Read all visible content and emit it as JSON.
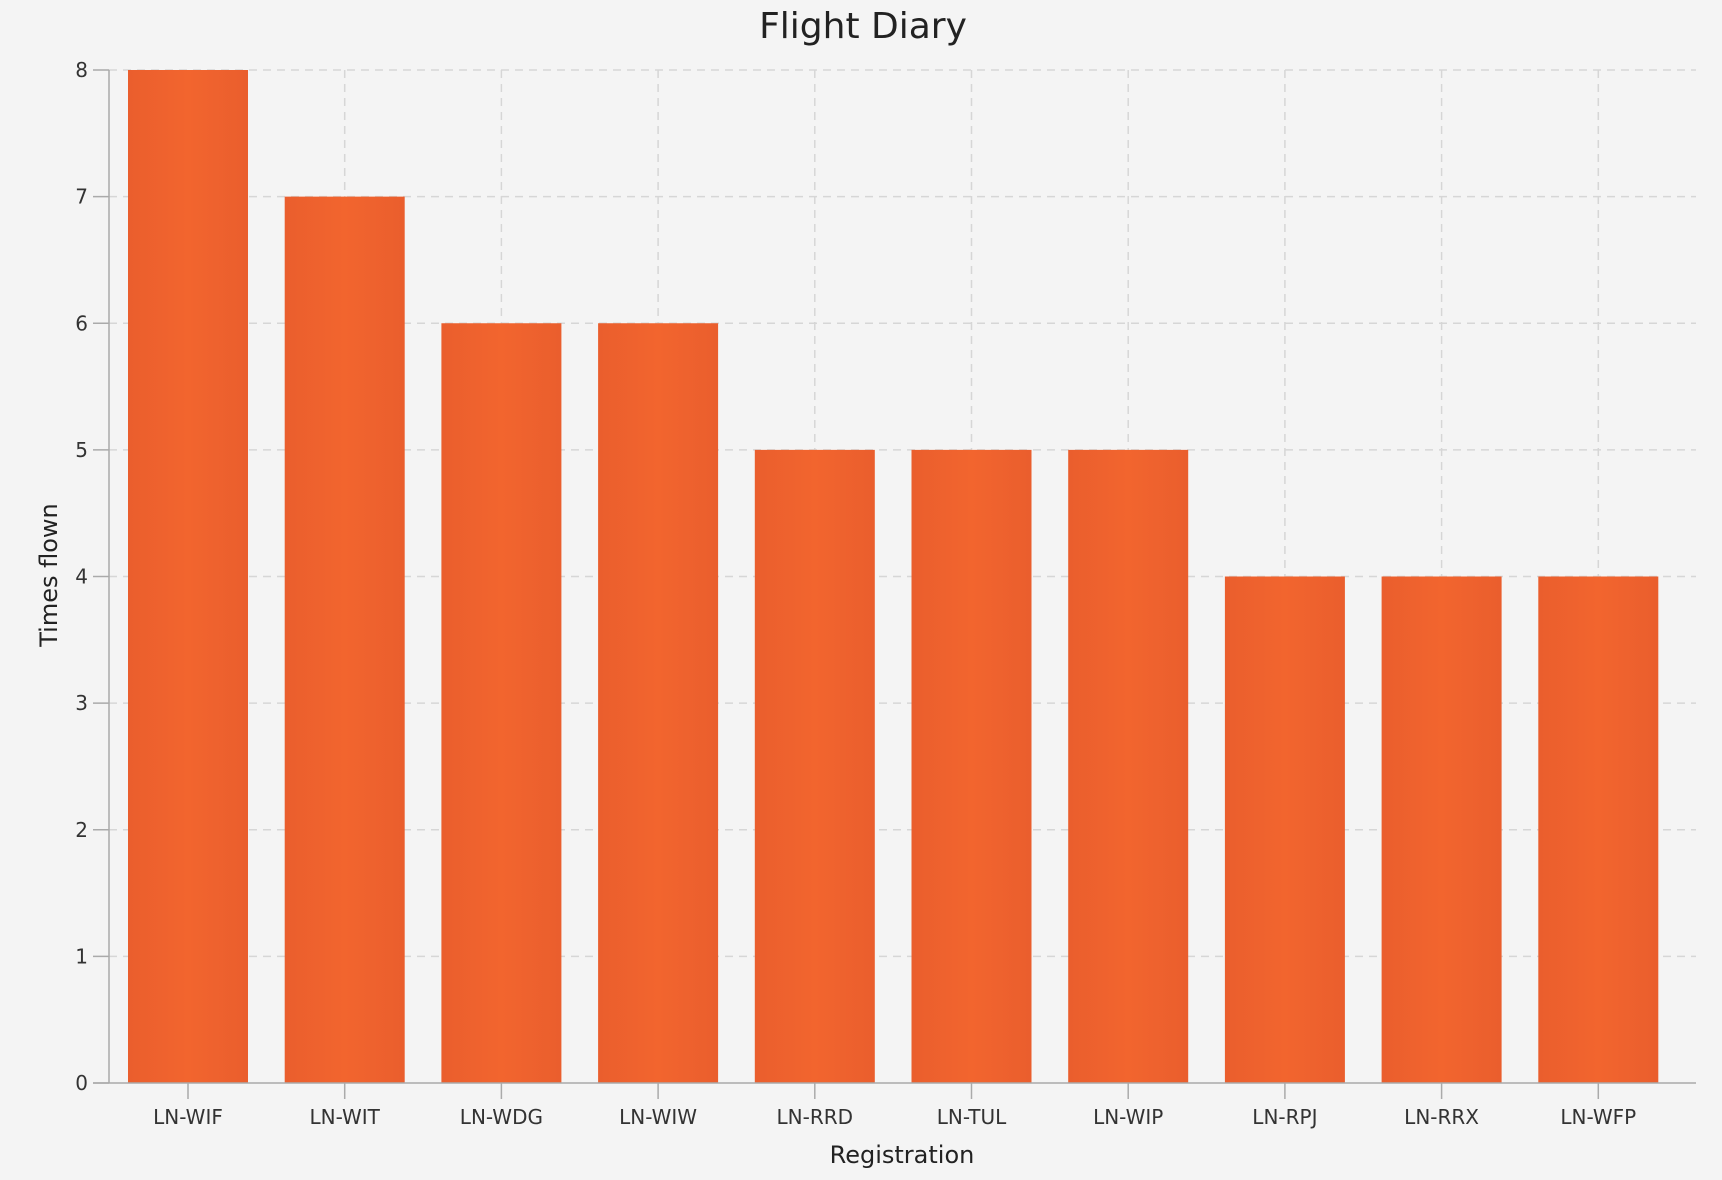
{
  "chart_data": {
    "type": "bar",
    "title": "Flight Diary",
    "xlabel": "Registration",
    "ylabel": "Times flown",
    "categories": [
      "LN-WIF",
      "LN-WIT",
      "LN-WDG",
      "LN-WIW",
      "LN-RRD",
      "LN-TUL",
      "LN-WIP",
      "LN-RPJ",
      "LN-RRX",
      "LN-WFP"
    ],
    "values": [
      8,
      7,
      6,
      6,
      5,
      5,
      5,
      4,
      4,
      4
    ],
    "ylim": [
      0,
      8
    ],
    "yticks": [
      0,
      1,
      2,
      3,
      4,
      5,
      6,
      7,
      8
    ],
    "grid": true,
    "legend": "none"
  },
  "colors": {
    "bar": "#ea5e2d",
    "bar_highlight": "#f2652e",
    "background": "#f4f4f4"
  }
}
